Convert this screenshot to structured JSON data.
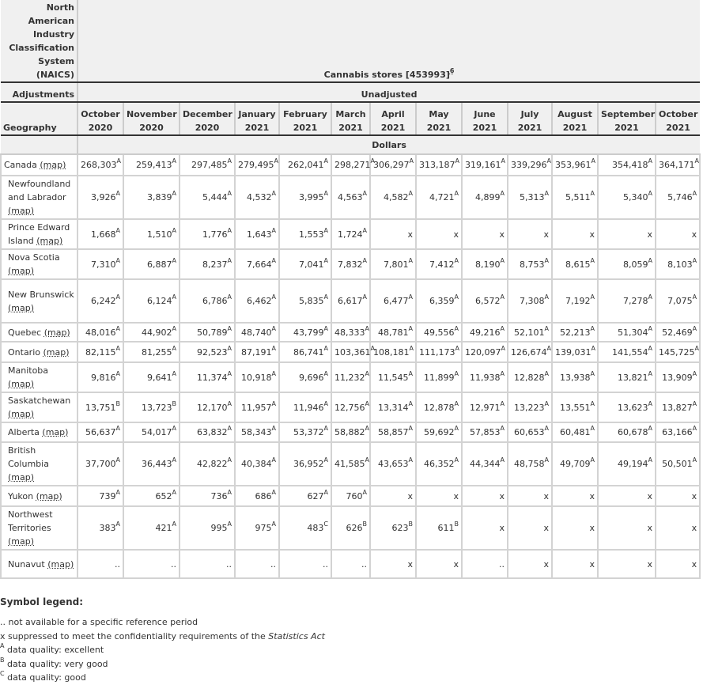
{
  "header": {
    "naics_label": "North American Industry Classification System (NAICS)",
    "naics_value": "Cannabis stores [453993]",
    "naics_footnote": "6",
    "adjustments_label": "Adjustments",
    "adjustments_value": "Unadjusted",
    "geography_label": "Geography",
    "unit": "Dollars",
    "months": [
      [
        "October",
        "2020"
      ],
      [
        "November",
        "2020"
      ],
      [
        "December",
        "2020"
      ],
      [
        "January",
        "2021"
      ],
      [
        "February",
        "2021"
      ],
      [
        "March",
        "2021"
      ],
      [
        "April",
        "2021"
      ],
      [
        "May",
        "2021"
      ],
      [
        "June",
        "2021"
      ],
      [
        "July",
        "2021"
      ],
      [
        "August",
        "2021"
      ],
      [
        "September",
        "2021"
      ],
      [
        "October",
        "2021"
      ]
    ]
  },
  "map_link": "map",
  "rows": [
    {
      "geo": "Canada",
      "cells": [
        [
          "268,303",
          "A"
        ],
        [
          "259,413",
          "A"
        ],
        [
          "297,485",
          "A"
        ],
        [
          "279,495",
          "A"
        ],
        [
          "262,041",
          "A"
        ],
        [
          "298,271",
          "A"
        ],
        [
          "306,297",
          "A"
        ],
        [
          "313,187",
          "A"
        ],
        [
          "319,161",
          "A"
        ],
        [
          "339,296",
          "A"
        ],
        [
          "353,961",
          "A"
        ],
        [
          "354,418",
          "A"
        ],
        [
          "364,171",
          "A"
        ]
      ]
    },
    {
      "geo": "Newfoundland and Labrador",
      "cells": [
        [
          "3,926",
          "A"
        ],
        [
          "3,839",
          "A"
        ],
        [
          "5,444",
          "A"
        ],
        [
          "4,532",
          "A"
        ],
        [
          "3,995",
          "A"
        ],
        [
          "4,563",
          "A"
        ],
        [
          "4,582",
          "A"
        ],
        [
          "4,721",
          "A"
        ],
        [
          "4,899",
          "A"
        ],
        [
          "5,313",
          "A"
        ],
        [
          "5,511",
          "A"
        ],
        [
          "5,340",
          "A"
        ],
        [
          "5,746",
          "A"
        ]
      ]
    },
    {
      "geo": "Prince Edward Island",
      "cells": [
        [
          "1,668",
          "A"
        ],
        [
          "1,510",
          "A"
        ],
        [
          "1,776",
          "A"
        ],
        [
          "1,643",
          "A"
        ],
        [
          "1,553",
          "A"
        ],
        [
          "1,724",
          "A"
        ],
        [
          "x",
          ""
        ],
        [
          "x",
          ""
        ],
        [
          "x",
          ""
        ],
        [
          "x",
          ""
        ],
        [
          "x",
          ""
        ],
        [
          "x",
          ""
        ],
        [
          "x",
          ""
        ]
      ]
    },
    {
      "geo": "Nova Scotia",
      "cells": [
        [
          "7,310",
          "A"
        ],
        [
          "6,887",
          "A"
        ],
        [
          "8,237",
          "A"
        ],
        [
          "7,664",
          "A"
        ],
        [
          "7,041",
          "A"
        ],
        [
          "7,832",
          "A"
        ],
        [
          "7,801",
          "A"
        ],
        [
          "7,412",
          "A"
        ],
        [
          "8,190",
          "A"
        ],
        [
          "8,753",
          "A"
        ],
        [
          "8,615",
          "A"
        ],
        [
          "8,059",
          "A"
        ],
        [
          "8,103",
          "A"
        ]
      ]
    },
    {
      "geo": "New Brunswick",
      "cells": [
        [
          "6,242",
          "A"
        ],
        [
          "6,124",
          "A"
        ],
        [
          "6,786",
          "A"
        ],
        [
          "6,462",
          "A"
        ],
        [
          "5,835",
          "A"
        ],
        [
          "6,617",
          "A"
        ],
        [
          "6,477",
          "A"
        ],
        [
          "6,359",
          "A"
        ],
        [
          "6,572",
          "A"
        ],
        [
          "7,308",
          "A"
        ],
        [
          "7,192",
          "A"
        ],
        [
          "7,278",
          "A"
        ],
        [
          "7,075",
          "A"
        ]
      ]
    },
    {
      "geo": "Quebec",
      "cells": [
        [
          "48,016",
          "A"
        ],
        [
          "44,902",
          "A"
        ],
        [
          "50,789",
          "A"
        ],
        [
          "48,740",
          "A"
        ],
        [
          "43,799",
          "A"
        ],
        [
          "48,333",
          "A"
        ],
        [
          "48,781",
          "A"
        ],
        [
          "49,556",
          "A"
        ],
        [
          "49,216",
          "A"
        ],
        [
          "52,101",
          "A"
        ],
        [
          "52,213",
          "A"
        ],
        [
          "51,304",
          "A"
        ],
        [
          "52,469",
          "A"
        ]
      ]
    },
    {
      "geo": "Ontario",
      "cells": [
        [
          "82,115",
          "A"
        ],
        [
          "81,255",
          "A"
        ],
        [
          "92,523",
          "A"
        ],
        [
          "87,191",
          "A"
        ],
        [
          "86,741",
          "A"
        ],
        [
          "103,361",
          "A"
        ],
        [
          "108,181",
          "A"
        ],
        [
          "111,173",
          "A"
        ],
        [
          "120,097",
          "A"
        ],
        [
          "126,674",
          "A"
        ],
        [
          "139,031",
          "A"
        ],
        [
          "141,554",
          "A"
        ],
        [
          "145,725",
          "A"
        ]
      ]
    },
    {
      "geo": "Manitoba",
      "cells": [
        [
          "9,816",
          "A"
        ],
        [
          "9,641",
          "A"
        ],
        [
          "11,374",
          "A"
        ],
        [
          "10,918",
          "A"
        ],
        [
          "9,696",
          "A"
        ],
        [
          "11,232",
          "A"
        ],
        [
          "11,545",
          "A"
        ],
        [
          "11,899",
          "A"
        ],
        [
          "11,938",
          "A"
        ],
        [
          "12,828",
          "A"
        ],
        [
          "13,938",
          "A"
        ],
        [
          "13,821",
          "A"
        ],
        [
          "13,909",
          "A"
        ]
      ]
    },
    {
      "geo": "Saskatchewan",
      "cells": [
        [
          "13,751",
          "B"
        ],
        [
          "13,723",
          "B"
        ],
        [
          "12,170",
          "A"
        ],
        [
          "11,957",
          "A"
        ],
        [
          "11,946",
          "A"
        ],
        [
          "12,756",
          "A"
        ],
        [
          "13,314",
          "A"
        ],
        [
          "12,878",
          "A"
        ],
        [
          "12,971",
          "A"
        ],
        [
          "13,223",
          "A"
        ],
        [
          "13,551",
          "A"
        ],
        [
          "13,623",
          "A"
        ],
        [
          "13,827",
          "A"
        ]
      ]
    },
    {
      "geo": "Alberta",
      "cells": [
        [
          "56,637",
          "A"
        ],
        [
          "54,017",
          "A"
        ],
        [
          "63,832",
          "A"
        ],
        [
          "58,343",
          "A"
        ],
        [
          "53,372",
          "A"
        ],
        [
          "58,882",
          "A"
        ],
        [
          "58,857",
          "A"
        ],
        [
          "59,692",
          "A"
        ],
        [
          "57,853",
          "A"
        ],
        [
          "60,653",
          "A"
        ],
        [
          "60,481",
          "A"
        ],
        [
          "60,678",
          "A"
        ],
        [
          "63,166",
          "A"
        ]
      ]
    },
    {
      "geo": "British Columbia",
      "cells": [
        [
          "37,700",
          "A"
        ],
        [
          "36,443",
          "A"
        ],
        [
          "42,822",
          "A"
        ],
        [
          "40,384",
          "A"
        ],
        [
          "36,952",
          "A"
        ],
        [
          "41,585",
          "A"
        ],
        [
          "43,653",
          "A"
        ],
        [
          "46,352",
          "A"
        ],
        [
          "44,344",
          "A"
        ],
        [
          "48,758",
          "A"
        ],
        [
          "49,709",
          "A"
        ],
        [
          "49,194",
          "A"
        ],
        [
          "50,501",
          "A"
        ]
      ]
    },
    {
      "geo": "Yukon",
      "cells": [
        [
          "739",
          "A"
        ],
        [
          "652",
          "A"
        ],
        [
          "736",
          "A"
        ],
        [
          "686",
          "A"
        ],
        [
          "627",
          "A"
        ],
        [
          "760",
          "A"
        ],
        [
          "x",
          ""
        ],
        [
          "x",
          ""
        ],
        [
          "x",
          ""
        ],
        [
          "x",
          ""
        ],
        [
          "x",
          ""
        ],
        [
          "x",
          ""
        ],
        [
          "x",
          ""
        ]
      ]
    },
    {
      "geo": "Northwest Territories",
      "cells": [
        [
          "383",
          "A"
        ],
        [
          "421",
          "A"
        ],
        [
          "995",
          "A"
        ],
        [
          "975",
          "A"
        ],
        [
          "483",
          "C"
        ],
        [
          "626",
          "B"
        ],
        [
          "623",
          "B"
        ],
        [
          "611",
          "B"
        ],
        [
          "x",
          ""
        ],
        [
          "x",
          ""
        ],
        [
          "x",
          ""
        ],
        [
          "x",
          ""
        ],
        [
          "x",
          ""
        ]
      ]
    },
    {
      "geo": "Nunavut",
      "cells": [
        [
          "..",
          ""
        ],
        [
          "..",
          ""
        ],
        [
          "..",
          ""
        ],
        [
          "..",
          ""
        ],
        [
          "..",
          ""
        ],
        [
          "..",
          ""
        ],
        [
          "x",
          ""
        ],
        [
          "x",
          ""
        ],
        [
          "..",
          ""
        ],
        [
          "x",
          ""
        ],
        [
          "x",
          ""
        ],
        [
          "x",
          ""
        ],
        [
          "x",
          ""
        ]
      ]
    }
  ],
  "legend": {
    "title": "Symbol legend:",
    "items": [
      {
        "symbol": "..",
        "text": "not available for a specific reference period"
      },
      {
        "symbol": "x",
        "text": "suppressed to meet the confidentiality requirements of the ",
        "italic": "Statistics Act"
      },
      {
        "symbol": "A",
        "text": "data quality: excellent",
        "sup": true
      },
      {
        "symbol": "B",
        "text": "data quality: very good",
        "sup": true
      },
      {
        "symbol": "C",
        "text": "data quality: good",
        "sup": true
      }
    ]
  }
}
